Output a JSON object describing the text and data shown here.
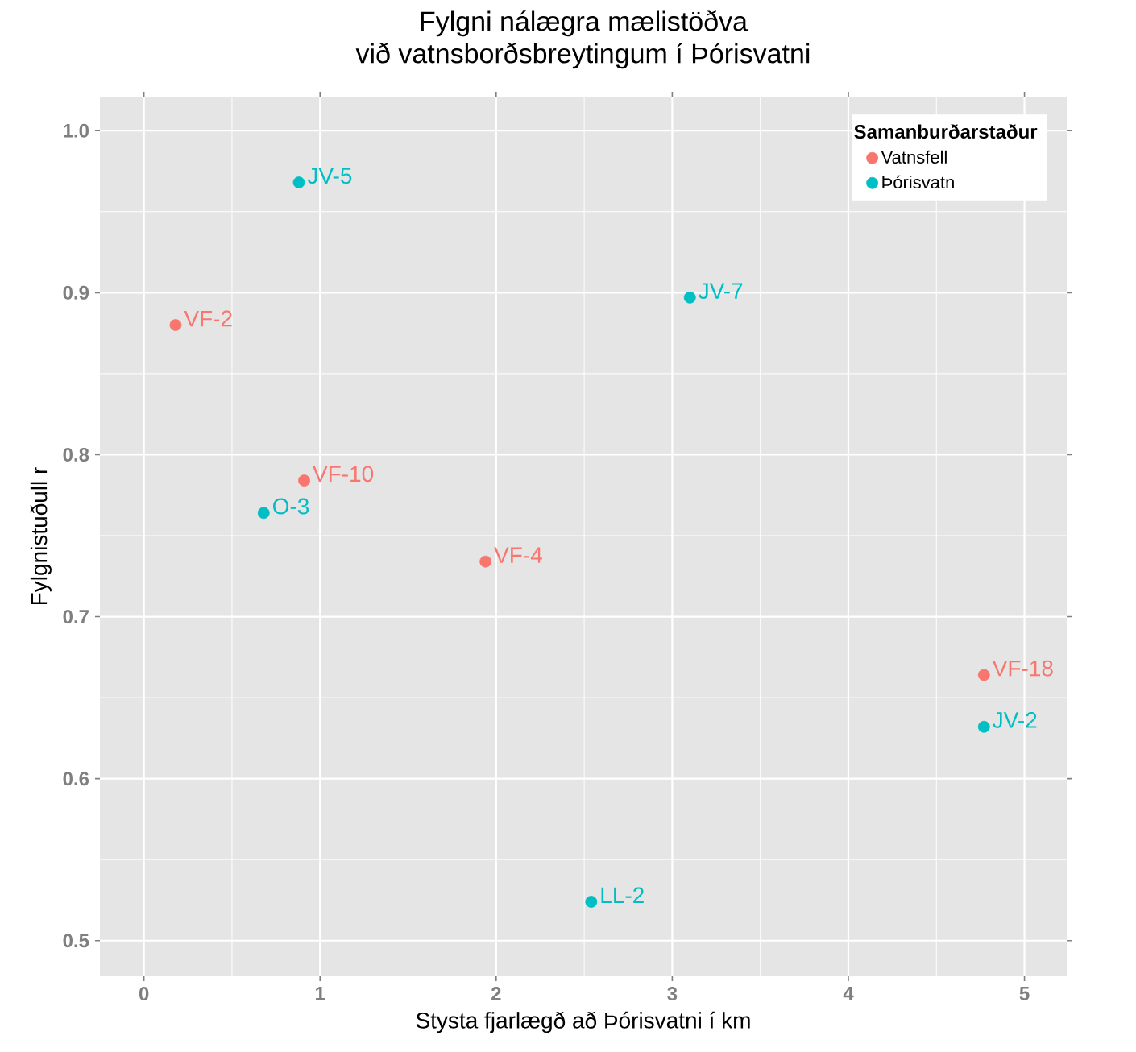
{
  "chart_data": {
    "type": "scatter",
    "title": "Fylgni nálægra mælistöðva",
    "subtitle": "við vatnsborðsbreytingum í Þórisvatni",
    "xlabel": "Stysta fjarlægð að Þórisvatni í km",
    "ylabel": "Fylgnistuðull r",
    "legend_title": "Samanburðarstaður",
    "series": [
      {
        "name": "Vatnsfell",
        "color": "#f8766d",
        "x": [
          0.18,
          0.91,
          1.94,
          4.77
        ],
        "values": [
          0.88,
          0.784,
          0.734,
          0.664
        ]
      },
      {
        "name": "Þórisvatn",
        "color": "#00bfc4",
        "x": [
          0.88,
          0.68,
          3.1,
          2.54,
          4.77
        ],
        "values": [
          0.968,
          0.764,
          0.897,
          0.524,
          0.632
        ]
      }
    ],
    "annotations": [
      {
        "text": "VF-2",
        "x": 0.18,
        "y": 0.88
      },
      {
        "text": "VF-10",
        "x": 0.91,
        "y": 0.784
      },
      {
        "text": "VF-4",
        "x": 1.94,
        "y": 0.734
      },
      {
        "text": "VF-18",
        "x": 4.77,
        "y": 0.664
      },
      {
        "text": "JV-5",
        "x": 0.88,
        "y": 0.968
      },
      {
        "text": "O-3",
        "x": 0.68,
        "y": 0.764
      },
      {
        "text": "JV-7",
        "x": 3.1,
        "y": 0.897
      },
      {
        "text": "LL-2",
        "x": 2.54,
        "y": 0.524
      },
      {
        "text": "JV-2",
        "x": 4.77,
        "y": 0.632
      }
    ],
    "xlim": [
      -0.25,
      5.24
    ],
    "ylim": [
      0.478,
      1.021
    ],
    "xticks": [
      0,
      1,
      2,
      3,
      4,
      5
    ],
    "yticks": [
      0.5,
      0.6,
      0.7,
      0.8,
      0.9,
      {
        "value": 1.0,
        "label": "1.0"
      }
    ],
    "grid": true,
    "legend": "top right",
    "marker": "circle"
  }
}
